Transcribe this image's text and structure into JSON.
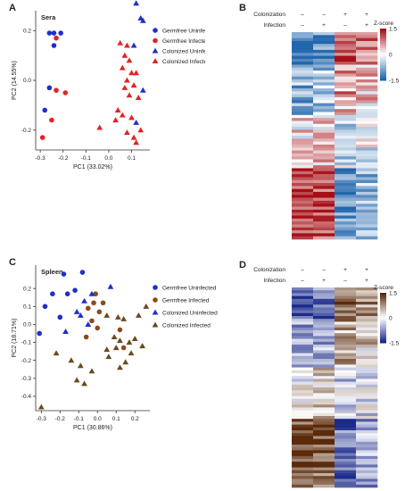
{
  "colors": {
    "germfree_uninfected": "#1f2fc8",
    "germfree_infected_A": "#e02424",
    "colonized_uninfected": "#1f2fc8",
    "colonized_infected_A": "#e02424",
    "germfree_infected_C": "#8a4a1c",
    "colonized_infected_C": "#6a4a1a",
    "heatmap_A_high": "#a50f15",
    "heatmap_A_low": "#2166ac",
    "heatmap_C_high": "#5a2a0a",
    "heatmap_C_low": "#1a2a8a"
  },
  "panels": {
    "A": {
      "letter": "A"
    },
    "B": {
      "letter": "B"
    },
    "C": {
      "letter": "C"
    },
    "D": {
      "letter": "D"
    }
  },
  "heatmaps": {
    "B": {
      "row_labels": [
        "Colonization",
        "Infection"
      ],
      "columns": [
        {
          "colonization": "–",
          "infection": "–"
        },
        {
          "colonization": "–",
          "infection": "+"
        },
        {
          "colonization": "+",
          "infection": "–"
        },
        {
          "colonization": "+",
          "infection": "+"
        }
      ],
      "scale_title": "Z-score",
      "scale_ticks": [
        "1.5",
        "0",
        "-1.5"
      ]
    },
    "D": {
      "row_labels": [
        "Colonization",
        "Infection"
      ],
      "columns": [
        {
          "colonization": "–",
          "infection": "–"
        },
        {
          "colonization": "–",
          "infection": "+"
        },
        {
          "colonization": "+",
          "infection": "–"
        },
        {
          "colonization": "+",
          "infection": "+"
        }
      ],
      "scale_title": "Z-score",
      "scale_ticks": [
        "1.5",
        "0",
        "-1.5"
      ]
    }
  },
  "chart_data": [
    {
      "type": "scatter",
      "panel": "A",
      "title": "Sera",
      "xlabel": "PC1 (33.02%)",
      "ylabel": "PC2 (14.55%)",
      "xlim": [
        -0.32,
        0.18
      ],
      "ylim": [
        -0.28,
        0.28
      ],
      "xticks": [
        -0.3,
        -0.2,
        -0.1,
        0.0,
        0.1
      ],
      "xtick_labels": [
        "-0.3",
        "-0.2",
        "-0.1",
        "0.0",
        "0.1"
      ],
      "yticks": [
        0.2,
        0.0,
        -0.2
      ],
      "ytick_labels": [
        "0.2",
        "0.0",
        "-0.2"
      ],
      "legend_position": "right",
      "series": [
        {
          "name": "Germfree Uninfected",
          "marker": "circle",
          "color": "#1f2fc8",
          "points": [
            [
              -0.26,
              0.19
            ],
            [
              -0.24,
              0.19
            ],
            [
              -0.21,
              0.19
            ],
            [
              -0.24,
              0.14
            ],
            [
              -0.26,
              -0.03
            ],
            [
              -0.28,
              -0.12
            ]
          ]
        },
        {
          "name": "Germfree Infected",
          "marker": "circle",
          "color": "#e02424",
          "points": [
            [
              -0.23,
              0.17
            ],
            [
              -0.23,
              -0.04
            ],
            [
              -0.19,
              -0.05
            ],
            [
              -0.25,
              -0.16
            ],
            [
              -0.29,
              -0.23
            ]
          ]
        },
        {
          "name": "Colonized Uninfected",
          "marker": "triangle",
          "color": "#1f2fc8",
          "points": [
            [
              0.12,
              0.31
            ],
            [
              0.14,
              0.25
            ],
            [
              0.15,
              0.24
            ],
            [
              0.15,
              -0.04
            ],
            [
              0.12,
              -0.17
            ],
            [
              0.11,
              0.14
            ]
          ]
        },
        {
          "name": "Colonized Infected",
          "marker": "triangle",
          "color": "#e02424",
          "points": [
            [
              0.05,
              0.15
            ],
            [
              0.08,
              0.14
            ],
            [
              0.07,
              0.1
            ],
            [
              0.09,
              0.08
            ],
            [
              0.06,
              0.05
            ],
            [
              0.1,
              0.03
            ],
            [
              0.08,
              0.0
            ],
            [
              0.12,
              0.03
            ],
            [
              0.11,
              -0.02
            ],
            [
              0.07,
              -0.03
            ],
            [
              0.09,
              -0.06
            ],
            [
              0.13,
              -0.07
            ],
            [
              0.04,
              -0.12
            ],
            [
              0.06,
              -0.14
            ],
            [
              0.1,
              -0.15
            ],
            [
              0.08,
              -0.21
            ],
            [
              0.11,
              -0.23
            ],
            [
              0.12,
              -0.25
            ],
            [
              -0.04,
              -0.19
            ],
            [
              0.03,
              -0.16
            ],
            [
              0.14,
              -0.2
            ]
          ]
        }
      ]
    },
    {
      "type": "scatter",
      "panel": "C",
      "title": "Spleen",
      "xlabel": "PC1 (30.86%)",
      "ylabel": "PC2 (18.71%)",
      "xlim": [
        -0.33,
        0.28
      ],
      "ylim": [
        -0.48,
        0.33
      ],
      "xticks": [
        -0.3,
        -0.2,
        -0.1,
        0.0,
        0.1,
        0.2
      ],
      "xtick_labels": [
        "-0.3",
        "-0.2",
        "-0.1",
        "0.0",
        "0.1",
        "0.2"
      ],
      "yticks": [
        0.2,
        0.1,
        0.0,
        -0.1,
        -0.2,
        -0.3,
        -0.4
      ],
      "ytick_labels": [
        "0.2",
        "0.1",
        "0.0",
        "-0.1",
        "-0.2",
        "-0.3",
        "-0.4"
      ],
      "legend_position": "right",
      "series": [
        {
          "name": "Germfree Uninfected",
          "marker": "circle",
          "color": "#1f2fc8",
          "points": [
            [
              -0.18,
              0.28
            ],
            [
              -0.08,
              0.29
            ],
            [
              -0.12,
              0.19
            ],
            [
              -0.16,
              0.17
            ],
            [
              -0.24,
              0.17
            ],
            [
              -0.28,
              0.1
            ],
            [
              -0.2,
              0.04
            ],
            [
              -0.31,
              -0.05
            ]
          ]
        },
        {
          "name": "Germfree Infected",
          "marker": "circle",
          "color": "#8a4a1c",
          "points": [
            [
              -0.01,
              0.17
            ],
            [
              -0.02,
              0.12
            ],
            [
              -0.05,
              0.09
            ],
            [
              0.01,
              0.07
            ],
            [
              0.03,
              0.12
            ],
            [
              -0.03,
              0.02
            ],
            [
              0.0,
              -0.02
            ],
            [
              -0.06,
              -0.07
            ],
            [
              0.12,
              -0.03
            ],
            [
              0.14,
              -0.13
            ]
          ]
        },
        {
          "name": "Colonized Uninfected",
          "marker": "triangle",
          "color": "#1f2fc8",
          "points": [
            [
              0.07,
              0.21
            ],
            [
              -0.03,
              0.17
            ],
            [
              -0.07,
              0.13
            ],
            [
              -0.11,
              0.07
            ],
            [
              -0.09,
              0.05
            ],
            [
              -0.05,
              0.0
            ],
            [
              -0.17,
              -0.04
            ]
          ]
        },
        {
          "name": "Colonized Infected",
          "marker": "triangle",
          "color": "#6a4a1a",
          "points": [
            [
              0.05,
              0.05
            ],
            [
              0.11,
              0.04
            ],
            [
              0.14,
              0.03
            ],
            [
              0.22,
              0.05
            ],
            [
              0.09,
              -0.07
            ],
            [
              0.12,
              -0.09
            ],
            [
              0.17,
              -0.1
            ],
            [
              0.2,
              -0.08
            ],
            [
              0.05,
              -0.14
            ],
            [
              0.1,
              -0.13
            ],
            [
              0.18,
              -0.16
            ],
            [
              0.24,
              -0.12
            ],
            [
              -0.09,
              -0.23
            ],
            [
              -0.22,
              -0.16
            ],
            [
              -0.14,
              -0.2
            ],
            [
              -0.03,
              -0.26
            ],
            [
              0.06,
              -0.18
            ],
            [
              0.12,
              -0.24
            ],
            [
              0.15,
              -0.21
            ],
            [
              -0.11,
              -0.31
            ],
            [
              -0.07,
              -0.33
            ],
            [
              -0.3,
              -0.46
            ],
            [
              0.26,
              0.1
            ]
          ]
        }
      ]
    }
  ]
}
